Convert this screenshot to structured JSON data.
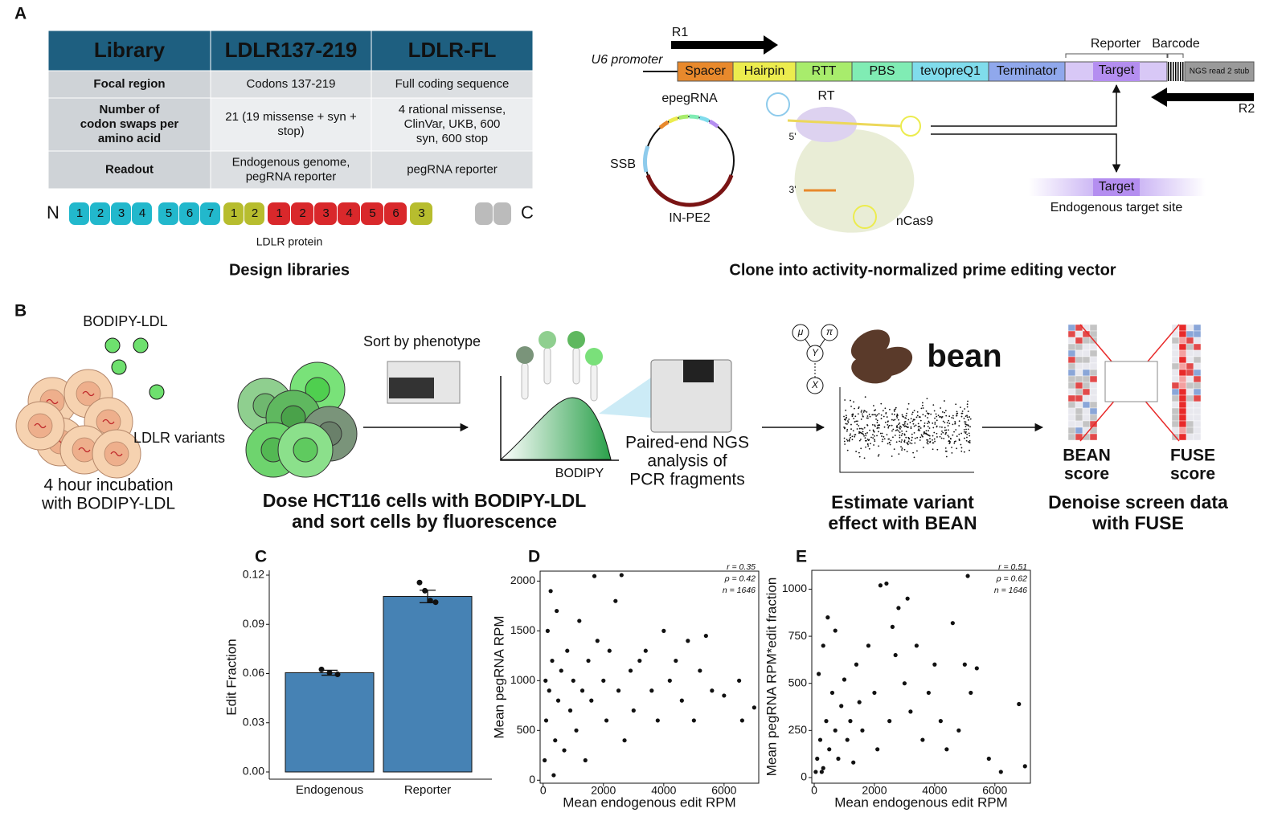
{
  "figure": {
    "panel_labels": [
      "A",
      "B",
      "C",
      "D",
      "E"
    ],
    "table": {
      "header": [
        "Library",
        "LDLR137-219",
        "LDLR-FL"
      ],
      "rows": [
        [
          [
            "Focal region"
          ],
          [
            "Codons 137-219"
          ],
          [
            "Full coding sequence"
          ]
        ],
        [
          [
            "Number of",
            "codon swaps per",
            "amino acid"
          ],
          [
            "21 (19 missense + syn +",
            "stop)"
          ],
          [
            "4 rational missense,",
            "ClinVar, UKB, 600",
            "syn, 600 stop"
          ]
        ],
        [
          [
            "Readout"
          ],
          [
            "Endogenous genome,",
            "pegRNA reporter"
          ],
          [
            "pegRNA reporter"
          ]
        ]
      ]
    },
    "protein": {
      "n_label": "N",
      "c_label": "C",
      "caption": "LDLR protein",
      "segments": [
        {
          "color": "#22b8cc",
          "labels": [
            "1",
            "2",
            "3",
            "4"
          ]
        },
        {
          "color": "#22b8cc",
          "labels": [
            "5",
            "6",
            "7"
          ]
        },
        {
          "color": "#b7bd2e",
          "labels": [
            "1",
            "2"
          ]
        },
        {
          "color": "#d9282b",
          "labels": [
            "1",
            "2",
            "3",
            "4",
            "5",
            "6"
          ]
        },
        {
          "color": "#b7bd2e",
          "labels": [
            "3"
          ]
        }
      ]
    },
    "design_caption": "Design libraries",
    "vector": {
      "r1": "R1",
      "r2": "R2",
      "promoter": "U6 promoter",
      "elements": [
        {
          "label": "Spacer",
          "color": "#e8892c"
        },
        {
          "label": "Hairpin",
          "color": "#ecec4e"
        },
        {
          "label": "RTT",
          "color": "#a8ec6c"
        },
        {
          "label": "PBS",
          "color": "#80ecb4"
        },
        {
          "label": "tevopreQ1",
          "color": "#80dcec"
        },
        {
          "label": "Terminator",
          "color": "#90a8ec"
        },
        {
          "label": "Target",
          "color": "#b48ef0"
        }
      ],
      "stub": "NGS read 2 stub",
      "reporter": "Reporter",
      "barcode": "Barcode",
      "epegrna": "epegRNA",
      "ssb": "SSB",
      "in_pe2": "IN-PE2",
      "rt": "RT",
      "five": "5'",
      "three": "3'",
      "ncas9": "nCas9",
      "target": "Target",
      "endogenous": "Endogenous target site",
      "caption": "Clone into activity-normalized prime editing vector"
    },
    "workflow": {
      "bodipy_ldl": "BODIPY-LDL",
      "ldlr_variants": "LDLR variants",
      "incubation": [
        "4 hour incubation",
        "with BODIPY-LDL"
      ],
      "sort": "Sort by phenotype",
      "bodipy": "BODIPY",
      "ngs": [
        "Paired-end NGS",
        "analysis of",
        "PCR fragments"
      ],
      "dose": [
        "Dose HCT116 cells with BODIPY-LDL",
        "and sort cells by fluorescence"
      ],
      "model_nodes": [
        "μ",
        "π",
        "Y",
        "X"
      ],
      "bean": "bean",
      "estimate": [
        "Estimate variant",
        "effect with BEAN"
      ],
      "bean_score": [
        "BEAN",
        "score"
      ],
      "fuse_score": [
        "FUSE",
        "score"
      ],
      "denoise": [
        "Denoise screen data",
        "with FUSE"
      ]
    }
  },
  "chart_data": [
    {
      "type": "bar",
      "ylabel": "Edit Fraction",
      "categories": [
        "Endogenous",
        "Reporter"
      ],
      "values": [
        0.0605,
        0.107
      ],
      "errors": [
        0.0015,
        0.0038
      ],
      "replicates": [
        [
          0.0625,
          0.0605,
          0.0595
        ],
        [
          0.1155,
          0.1105,
          0.1045,
          0.1035
        ]
      ],
      "color": "#4682b4",
      "ylim": [
        0,
        0.12
      ],
      "yticks": [
        {
          "value": 0,
          "label": "0.00"
        },
        0.03,
        0.06,
        0.09,
        0.12
      ]
    },
    {
      "type": "scatter",
      "xlabel": "Mean endogenous edit RPM",
      "ylabel": "Mean pegRNA RPM",
      "annotations": [
        "r = 0.35",
        "ρ = 0.42",
        "n = 1646"
      ],
      "color": "#111111",
      "x": [
        50,
        100,
        200,
        300,
        150,
        400,
        500,
        600,
        700,
        800,
        900,
        1000,
        1100,
        1200,
        1300,
        1400,
        1500,
        1600,
        1800,
        1700,
        2000,
        2100,
        2200,
        2400,
        2500,
        2600,
        2700,
        2900,
        3000,
        3200,
        3400,
        3600,
        3800,
        4000,
        4200,
        4400,
        4600,
        4800,
        5000,
        5200,
        5400,
        5600,
        6500,
        6600,
        7000,
        6000,
        250,
        350,
        80,
        450
      ],
      "values": [
        200,
        600,
        900,
        1200,
        1500,
        400,
        800,
        1100,
        300,
        1300,
        700,
        1000,
        500,
        1600,
        900,
        200,
        1200,
        800,
        1400,
        2050,
        1000,
        600,
        1300,
        1800,
        900,
        2060,
        400,
        1100,
        700,
        1200,
        1300,
        900,
        600,
        1500,
        1000,
        1200,
        800,
        1400,
        600,
        1100,
        1450,
        900,
        1000,
        600,
        730,
        850,
        1900,
        50,
        1000,
        1700
      ],
      "xlim": [
        -100,
        7150
      ],
      "ylim": [
        -30,
        2100
      ],
      "xticks": [
        0,
        2000,
        4000,
        6000
      ],
      "yticks": [
        0,
        500,
        1000,
        1500,
        2000
      ]
    },
    {
      "type": "scatter",
      "xlabel": "Mean endogenous edit RPM",
      "ylabel": "Mean pegRNA RPM*edit fraction",
      "annotations": [
        "r = 0.51",
        "ρ = 0.62",
        "n = 1646"
      ],
      "color": "#111111",
      "x": [
        50,
        100,
        200,
        300,
        400,
        500,
        600,
        700,
        800,
        900,
        1000,
        1100,
        1200,
        1300,
        1400,
        1500,
        1600,
        1800,
        2000,
        2100,
        2200,
        2400,
        2500,
        2600,
        2700,
        2800,
        3000,
        3100,
        3200,
        3400,
        3600,
        3800,
        4000,
        4200,
        4400,
        4600,
        4800,
        5000,
        5100,
        5200,
        5400,
        5800,
        6200,
        6800,
        7000,
        300,
        150,
        450,
        250,
        700
      ],
      "values": [
        30,
        100,
        200,
        50,
        300,
        150,
        450,
        250,
        100,
        380,
        520,
        200,
        300,
        80,
        600,
        400,
        250,
        700,
        450,
        150,
        1020,
        1030,
        300,
        800,
        650,
        900,
        500,
        950,
        350,
        700,
        200,
        450,
        600,
        300,
        150,
        820,
        250,
        600,
        1070,
        450,
        580,
        100,
        30,
        390,
        60,
        700,
        550,
        850,
        30,
        780
      ],
      "xlim": [
        -80,
        7180
      ],
      "ylim": [
        -30,
        1100
      ],
      "xticks": [
        0,
        2000,
        4000,
        6000
      ],
      "yticks": [
        0,
        250,
        500,
        750,
        1000
      ]
    }
  ]
}
